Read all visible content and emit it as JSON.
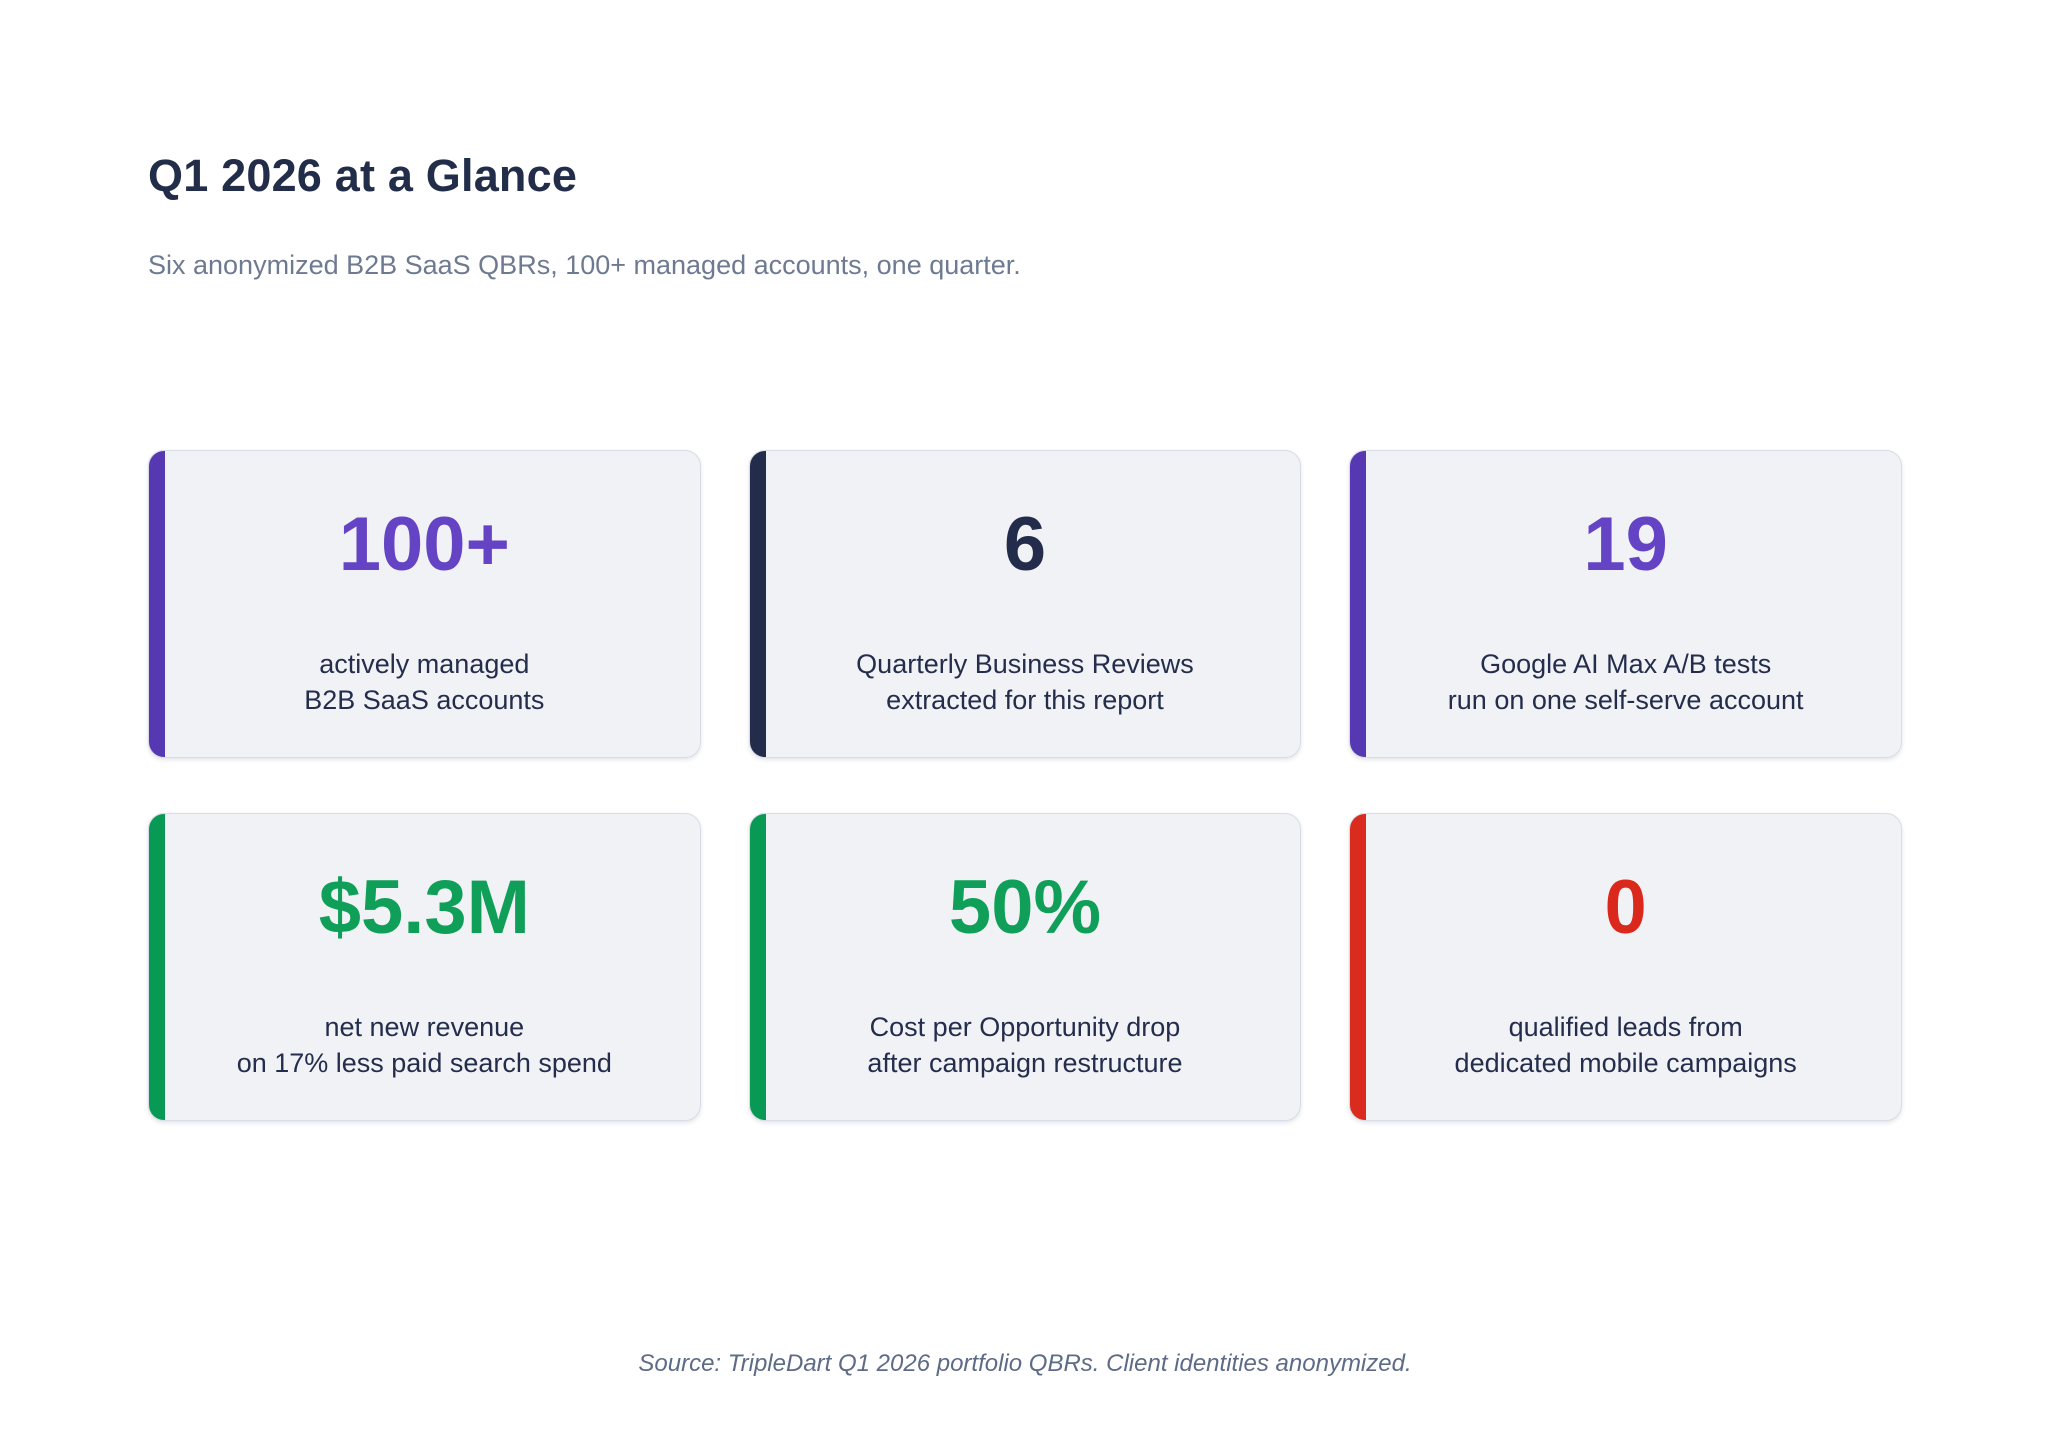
{
  "page": {
    "title": "Q1 2026 at a Glance",
    "subtitle": "Six anonymized B2B SaaS QBRs, 100+ managed accounts, one quarter.",
    "footer": "Source: TripleDart Q1 2026 portfolio QBRs. Client identities anonymized."
  },
  "colors": {
    "background": "#ffffff",
    "card_background": "#f1f2f6",
    "card_border": "#d8dce6",
    "title_text": "#222d4a",
    "subtitle_text": "#6e7a92",
    "label_text": "#242e4c",
    "footer_text": "#5d6b87",
    "purple": "#6443c4",
    "navy": "#232d4b",
    "green": "#0c9b53",
    "red": "#d92b1e"
  },
  "stats": [
    {
      "value": "100+",
      "label": "actively managed\nB2B SaaS accounts",
      "value_color": "#6443c4",
      "bar_color": "#5638b2"
    },
    {
      "value": "6",
      "label": "Quarterly Business Reviews\nextracted for this report",
      "value_color": "#232d4b",
      "bar_color": "#232d4b"
    },
    {
      "value": "19",
      "label": "Google AI Max A/B tests\nrun on one self-serve account",
      "value_color": "#6443c4",
      "bar_color": "#5638b2"
    },
    {
      "value": "$5.3M",
      "label": "net new revenue\non 17% less paid search spend",
      "value_color": "#0f9f58",
      "bar_color": "#089a54"
    },
    {
      "value": "50%",
      "label": "Cost per Opportunity drop\nafter campaign restructure",
      "value_color": "#0f9f58",
      "bar_color": "#089a54"
    },
    {
      "value": "0",
      "label": "qualified leads from\ndedicated mobile campaigns",
      "value_color": "#da291c",
      "bar_color": "#d92c1e"
    }
  ],
  "chart_data": {
    "type": "table",
    "title": "Q1 2026 at a Glance",
    "subtitle": "Six anonymized B2B SaaS QBRs, 100+ managed accounts, one quarter.",
    "categories": [
      "actively managed B2B SaaS accounts",
      "Quarterly Business Reviews extracted for this report",
      "Google AI Max A/B tests run on one self-serve account",
      "net new revenue on 17% less paid search spend",
      "Cost per Opportunity drop after campaign restructure",
      "qualified leads from dedicated mobile campaigns"
    ],
    "values": [
      "100+",
      "6",
      "19",
      "$5.3M",
      "50%",
      "0"
    ],
    "layout": "2 rows x 3 columns of KPI stat cards",
    "source_note": "Source: TripleDart Q1 2026 portfolio QBRs. Client identities anonymized."
  }
}
